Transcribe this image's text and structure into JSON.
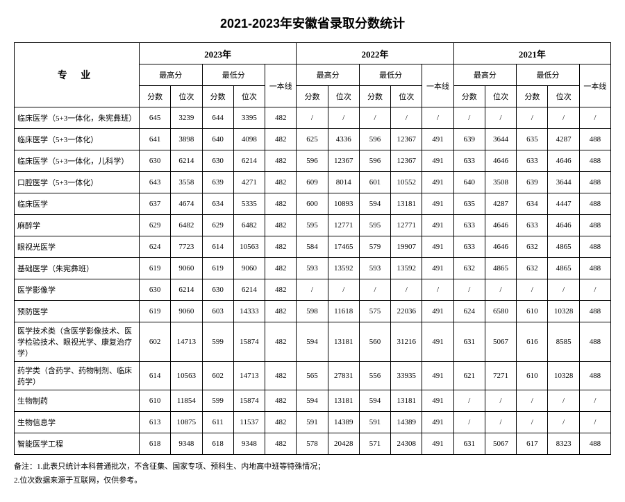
{
  "title": "2021-2023年安徽省录取分数统计",
  "headers": {
    "major": "专 业",
    "years": [
      "2023年",
      "2022年",
      "2021年"
    ],
    "highScore": "最高分",
    "lowScore": "最低分",
    "tier1": "一本线",
    "score": "分数",
    "rank": "位次"
  },
  "rows": [
    {
      "major": "临床医学（5+3一体化，朱宪彝班）",
      "y2023": [
        "645",
        "3239",
        "644",
        "3395",
        "482"
      ],
      "y2022": [
        "/",
        "/",
        "/",
        "/",
        "/"
      ],
      "y2021": [
        "/",
        "/",
        "/",
        "/",
        "/"
      ]
    },
    {
      "major": "临床医学（5+3一体化）",
      "y2023": [
        "641",
        "3898",
        "640",
        "4098",
        "482"
      ],
      "y2022": [
        "625",
        "4336",
        "596",
        "12367",
        "491"
      ],
      "y2021": [
        "639",
        "3644",
        "635",
        "4287",
        "488"
      ]
    },
    {
      "major": "临床医学（5+3一体化，儿科学）",
      "y2023": [
        "630",
        "6214",
        "630",
        "6214",
        "482"
      ],
      "y2022": [
        "596",
        "12367",
        "596",
        "12367",
        "491"
      ],
      "y2021": [
        "633",
        "4646",
        "633",
        "4646",
        "488"
      ]
    },
    {
      "major": "口腔医学（5+3一体化）",
      "y2023": [
        "643",
        "3558",
        "639",
        "4271",
        "482"
      ],
      "y2022": [
        "609",
        "8014",
        "601",
        "10552",
        "491"
      ],
      "y2021": [
        "640",
        "3508",
        "639",
        "3644",
        "488"
      ]
    },
    {
      "major": "临床医学",
      "y2023": [
        "637",
        "4674",
        "634",
        "5335",
        "482"
      ],
      "y2022": [
        "600",
        "10893",
        "594",
        "13181",
        "491"
      ],
      "y2021": [
        "635",
        "4287",
        "634",
        "4447",
        "488"
      ]
    },
    {
      "major": "麻醉学",
      "y2023": [
        "629",
        "6482",
        "629",
        "6482",
        "482"
      ],
      "y2022": [
        "595",
        "12771",
        "595",
        "12771",
        "491"
      ],
      "y2021": [
        "633",
        "4646",
        "633",
        "4646",
        "488"
      ]
    },
    {
      "major": "眼视光医学",
      "y2023": [
        "624",
        "7723",
        "614",
        "10563",
        "482"
      ],
      "y2022": [
        "584",
        "17465",
        "579",
        "19907",
        "491"
      ],
      "y2021": [
        "633",
        "4646",
        "632",
        "4865",
        "488"
      ]
    },
    {
      "major": "基础医学（朱宪彝班）",
      "y2023": [
        "619",
        "9060",
        "619",
        "9060",
        "482"
      ],
      "y2022": [
        "593",
        "13592",
        "593",
        "13592",
        "491"
      ],
      "y2021": [
        "632",
        "4865",
        "632",
        "4865",
        "488"
      ]
    },
    {
      "major": "医学影像学",
      "y2023": [
        "630",
        "6214",
        "630",
        "6214",
        "482"
      ],
      "y2022": [
        "/",
        "/",
        "/",
        "/",
        "/"
      ],
      "y2021": [
        "/",
        "/",
        "/",
        "/",
        "/"
      ]
    },
    {
      "major": "预防医学",
      "y2023": [
        "619",
        "9060",
        "603",
        "14333",
        "482"
      ],
      "y2022": [
        "598",
        "11618",
        "575",
        "22036",
        "491"
      ],
      "y2021": [
        "624",
        "6580",
        "610",
        "10328",
        "488"
      ]
    },
    {
      "major": "医学技术类（含医学影像技术、医学检验技术、眼视光学、康复治疗学）",
      "y2023": [
        "602",
        "14713",
        "599",
        "15874",
        "482"
      ],
      "y2022": [
        "594",
        "13181",
        "560",
        "31216",
        "491"
      ],
      "y2021": [
        "631",
        "5067",
        "616",
        "8585",
        "488"
      ]
    },
    {
      "major": "药学类（含药学、药物制剂、临床药学）",
      "y2023": [
        "614",
        "10563",
        "602",
        "14713",
        "482"
      ],
      "y2022": [
        "565",
        "27831",
        "556",
        "33935",
        "491"
      ],
      "y2021": [
        "621",
        "7271",
        "610",
        "10328",
        "488"
      ]
    },
    {
      "major": "生物制药",
      "y2023": [
        "610",
        "11854",
        "599",
        "15874",
        "482"
      ],
      "y2022": [
        "594",
        "13181",
        "594",
        "13181",
        "491"
      ],
      "y2021": [
        "/",
        "/",
        "/",
        "/",
        "/"
      ]
    },
    {
      "major": "生物信息学",
      "y2023": [
        "613",
        "10875",
        "611",
        "11537",
        "482"
      ],
      "y2022": [
        "591",
        "14389",
        "591",
        "14389",
        "491"
      ],
      "y2021": [
        "/",
        "/",
        "/",
        "/",
        "/"
      ]
    },
    {
      "major": "智能医学工程",
      "y2023": [
        "618",
        "9348",
        "618",
        "9348",
        "482"
      ],
      "y2022": [
        "578",
        "20428",
        "571",
        "24308",
        "491"
      ],
      "y2021": [
        "631",
        "5067",
        "617",
        "8323",
        "488"
      ]
    }
  ],
  "notes": [
    "备注：1.此表只统计本科普通批次，不含征集、国家专项、预科生、内地高中班等特殊情况；",
    "2.位次数据来源于互联网，仅供参考。"
  ]
}
